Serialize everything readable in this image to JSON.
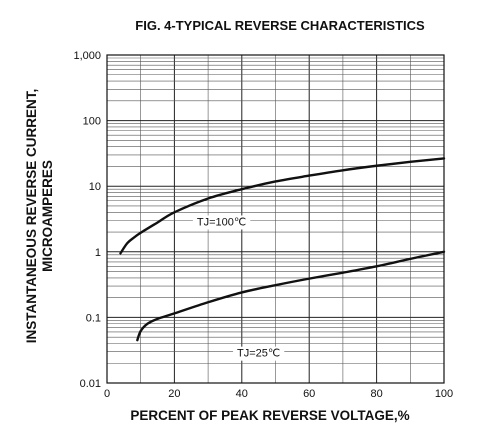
{
  "chart_data": {
    "type": "line",
    "title": "FIG. 4-TYPICAL REVERSE CHARACTERISTICS",
    "xlabel": "PERCENT OF PEAK REVERSE VOLTAGE,%",
    "ylabel_lines": [
      "INSTANTANEOUS REVERSE CURRENT,",
      "MICROAMPERES"
    ],
    "x_ticks": [
      "0",
      "20",
      "40",
      "60",
      "80",
      "100"
    ],
    "x_tick_values": [
      0,
      20,
      40,
      60,
      80,
      100
    ],
    "y_ticks": [
      "0.01",
      "0.1",
      "1",
      "10",
      "100",
      "1,000"
    ],
    "y_tick_values": [
      0.01,
      0.1,
      1,
      10,
      100,
      1000
    ],
    "xlim": [
      0,
      100
    ],
    "ylim": [
      0.01,
      1000
    ],
    "yscale": "log",
    "grid": true,
    "series": [
      {
        "name": "TJ=100℃",
        "x": [
          4,
          6,
          8,
          10,
          15,
          20,
          30,
          40,
          50,
          60,
          70,
          80,
          90,
          100
        ],
        "y": [
          0.95,
          1.35,
          1.65,
          1.95,
          2.8,
          4.0,
          6.5,
          9.0,
          11.8,
          14.5,
          17.5,
          20.5,
          23.5,
          26.5
        ],
        "label_x": 34,
        "label_y": 2.9
      },
      {
        "name": "TJ=25℃",
        "x": [
          9,
          10,
          12,
          15,
          20,
          30,
          40,
          50,
          60,
          70,
          80,
          90,
          100
        ],
        "y": [
          0.045,
          0.062,
          0.08,
          0.095,
          0.115,
          0.17,
          0.24,
          0.31,
          0.39,
          0.48,
          0.6,
          0.78,
          1.0
        ],
        "label_x": 45,
        "label_y": 0.029
      }
    ]
  }
}
